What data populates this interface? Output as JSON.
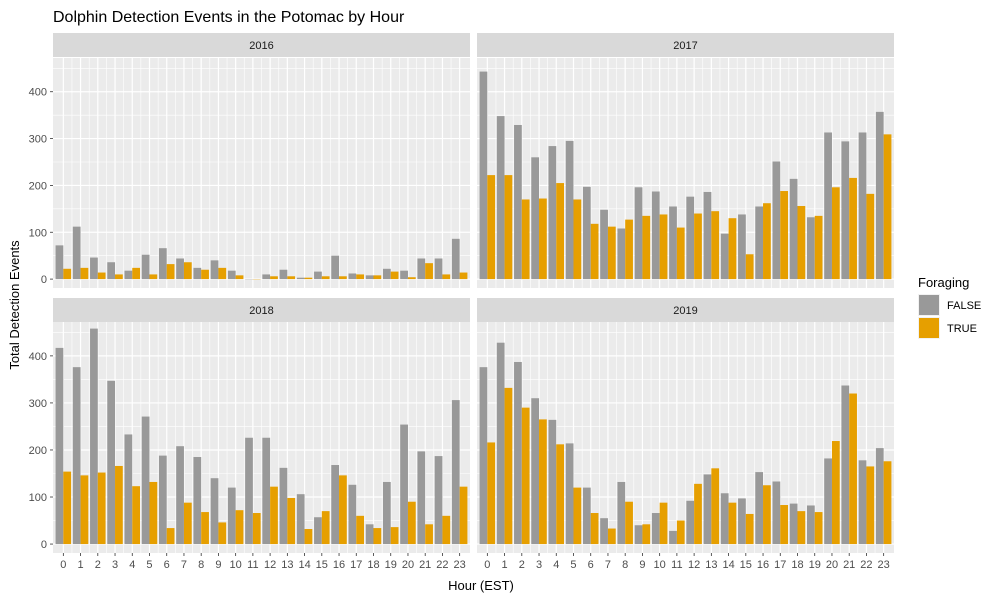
{
  "chart_data": {
    "type": "bar",
    "title": "Dolphin Detection Events in the Potomac by Hour",
    "xlabel": "Hour (EST)",
    "ylabel": "Total Detection Events",
    "ylim": [
      0,
      460
    ],
    "yticks": [
      0,
      100,
      200,
      300,
      400
    ],
    "categories": [
      "0",
      "1",
      "2",
      "3",
      "4",
      "5",
      "6",
      "7",
      "8",
      "9",
      "10",
      "11",
      "12",
      "13",
      "14",
      "15",
      "16",
      "17",
      "18",
      "19",
      "20",
      "21",
      "22",
      "23"
    ],
    "legend": {
      "title": "Foraging",
      "position": "right",
      "entries": [
        {
          "label": "FALSE",
          "color": "#999999"
        },
        {
          "label": "TRUE",
          "color": "#E69F00"
        }
      ]
    },
    "grid": true,
    "panels": [
      {
        "label": "2016",
        "series": [
          {
            "name": "FALSE",
            "values": [
              72,
              112,
              46,
              36,
              18,
              52,
              66,
              44,
              24,
              40,
              18,
              0,
              10,
              20,
              3,
              16,
              50,
              12,
              8,
              22,
              18,
              44,
              44,
              86
            ]
          },
          {
            "name": "TRUE",
            "values": [
              22,
              24,
              14,
              10,
              24,
              10,
              32,
              36,
              20,
              24,
              8,
              0,
              6,
              6,
              3,
              6,
              6,
              10,
              8,
              16,
              4,
              34,
              10,
              14
            ]
          }
        ]
      },
      {
        "label": "2017",
        "series": [
          {
            "name": "FALSE",
            "values": [
              443,
              348,
              329,
              260,
              284,
              295,
              197,
              148,
              108,
              196,
              187,
              155,
              176,
              186,
              97,
              138,
              155,
              251,
              214,
              132,
              313,
              294,
              313,
              357
            ]
          },
          {
            "name": "TRUE",
            "values": [
              222,
              222,
              170,
              172,
              205,
              170,
              118,
              112,
              127,
              135,
              138,
              110,
              140,
              145,
              130,
              53,
              162,
              188,
              156,
              135,
              196,
              216,
              182,
              309
            ]
          }
        ]
      },
      {
        "label": "2018",
        "series": [
          {
            "name": "FALSE",
            "values": [
              417,
              376,
              458,
              347,
              233,
              271,
              188,
              208,
              185,
              140,
              120,
              226,
              226,
              162,
              106,
              57,
              168,
              126,
              42,
              132,
              254,
              197,
              187,
              306
            ]
          },
          {
            "name": "TRUE",
            "values": [
              154,
              146,
              152,
              166,
              123,
              132,
              34,
              88,
              68,
              46,
              72,
              66,
              122,
              98,
              32,
              70,
              146,
              60,
              34,
              36,
              90,
              42,
              60,
              122
            ]
          }
        ]
      },
      {
        "label": "2019",
        "series": [
          {
            "name": "FALSE",
            "values": [
              376,
              428,
              387,
              310,
              264,
              214,
              120,
              55,
              132,
              40,
              66,
              28,
              92,
              148,
              108,
              97,
              153,
              133,
              86,
              82,
              182,
              337,
              178,
              204
            ]
          },
          {
            "name": "TRUE",
            "values": [
              216,
              332,
              290,
              265,
              212,
              120,
              66,
              33,
              90,
              42,
              88,
              50,
              128,
              161,
              88,
              64,
              125,
              83,
              70,
              68,
              219,
              320,
              165,
              176
            ]
          }
        ]
      }
    ]
  }
}
